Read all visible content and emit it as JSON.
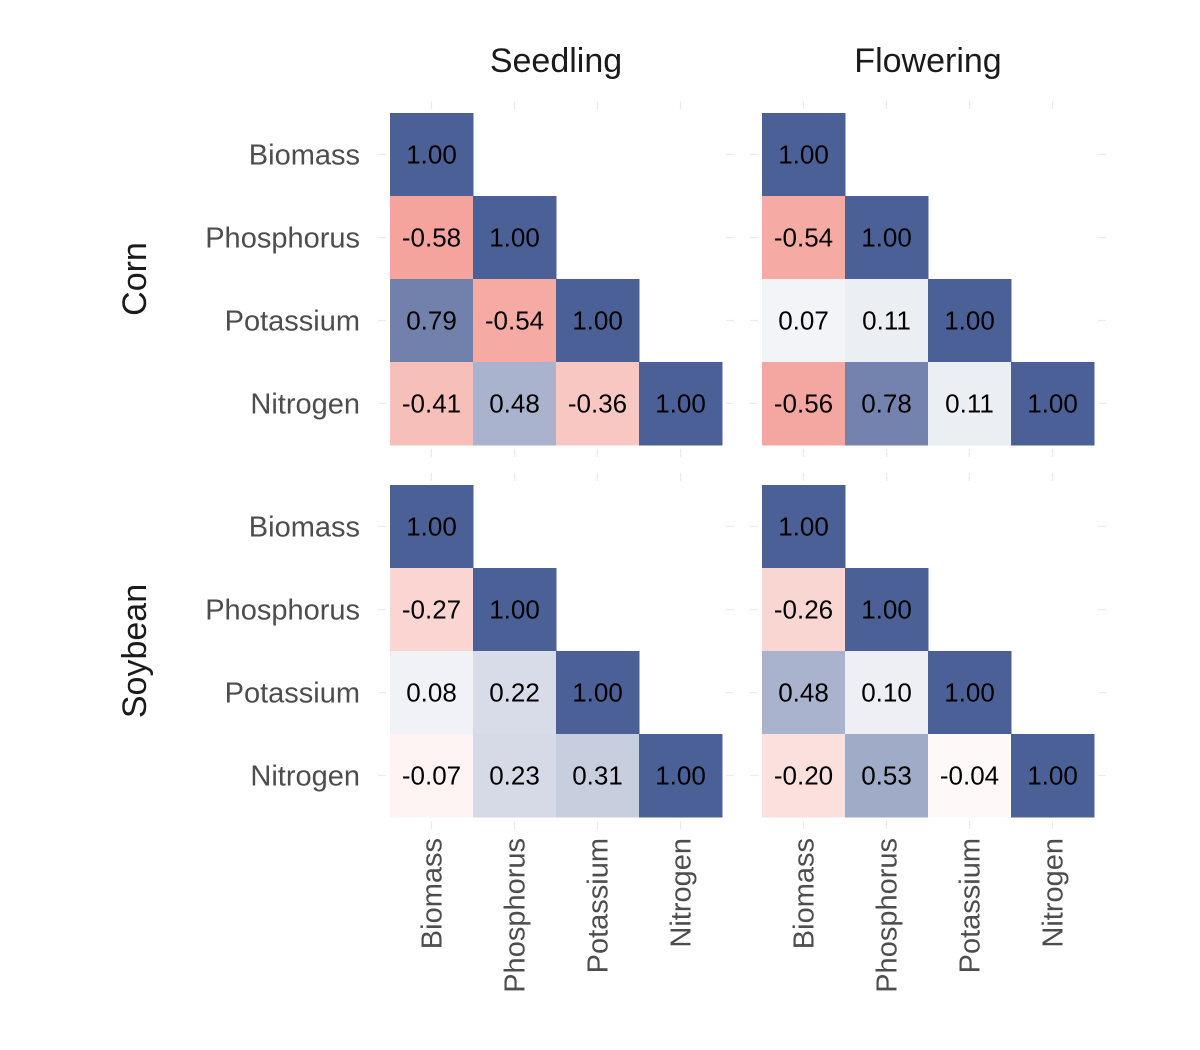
{
  "chart_data": {
    "type": "heatmap",
    "variables": [
      "Biomass",
      "Phosphorus",
      "Potassium",
      "Nitrogen"
    ],
    "col_facets": [
      "Seedling",
      "Flowering"
    ],
    "row_facets": [
      "Corn",
      "Soybean"
    ],
    "value_range": [
      -1,
      1
    ],
    "colors": {
      "negative": "#f4a49d",
      "zero": "#ffffff",
      "positive": "#4b6096"
    },
    "panels": [
      {
        "row": "Corn",
        "col": "Seedling",
        "matrix": [
          [
            1.0,
            null,
            null,
            null
          ],
          [
            -0.58,
            1.0,
            null,
            null
          ],
          [
            0.79,
            -0.54,
            1.0,
            null
          ],
          [
            -0.41,
            0.48,
            -0.36,
            1.0
          ]
        ],
        "labels": [
          [
            "1.00",
            "",
            "",
            ""
          ],
          [
            "-0.58",
            "1.00",
            "",
            ""
          ],
          [
            "0.79",
            "-0.54",
            "1.00",
            ""
          ],
          [
            "-0.41",
            "0.48",
            "-0.36",
            "1.00"
          ]
        ]
      },
      {
        "row": "Corn",
        "col": "Flowering",
        "matrix": [
          [
            1.0,
            null,
            null,
            null
          ],
          [
            -0.54,
            1.0,
            null,
            null
          ],
          [
            0.07,
            0.11,
            1.0,
            null
          ],
          [
            -0.56,
            0.78,
            0.11,
            1.0
          ]
        ],
        "labels": [
          [
            "1.00",
            "",
            "",
            ""
          ],
          [
            "-0.54",
            "1.00",
            "",
            ""
          ],
          [
            "0.07",
            "0.11",
            "1.00",
            ""
          ],
          [
            "-0.56",
            "0.78",
            "0.11",
            "1.00"
          ]
        ]
      },
      {
        "row": "Soybean",
        "col": "Seedling",
        "matrix": [
          [
            1.0,
            null,
            null,
            null
          ],
          [
            -0.27,
            1.0,
            null,
            null
          ],
          [
            0.08,
            0.22,
            1.0,
            null
          ],
          [
            -0.07,
            0.23,
            0.31,
            1.0
          ]
        ],
        "labels": [
          [
            "1.00",
            "",
            "",
            ""
          ],
          [
            "-0.27",
            "1.00",
            "",
            ""
          ],
          [
            "0.08",
            "0.22",
            "1.00",
            ""
          ],
          [
            "-0.07",
            "0.23",
            "0.31",
            "1.00"
          ]
        ]
      },
      {
        "row": "Soybean",
        "col": "Flowering",
        "matrix": [
          [
            1.0,
            null,
            null,
            null
          ],
          [
            -0.26,
            1.0,
            null,
            null
          ],
          [
            0.48,
            0.1,
            1.0,
            null
          ],
          [
            -0.2,
            0.53,
            -0.04,
            1.0
          ]
        ],
        "labels": [
          [
            "1.00",
            "",
            "",
            ""
          ],
          [
            "-0.26",
            "1.00",
            "",
            ""
          ],
          [
            "0.48",
            "0.10",
            "1.00",
            ""
          ],
          [
            "-0.20",
            "0.53",
            "-0.04",
            "1.00"
          ]
        ]
      }
    ]
  }
}
